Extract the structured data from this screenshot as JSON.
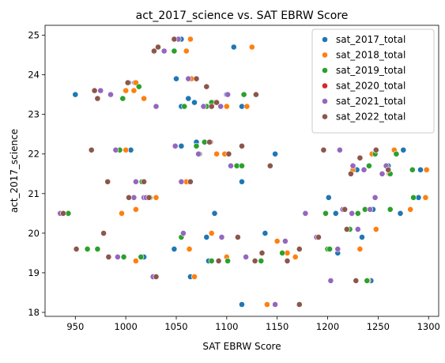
{
  "chart_data": {
    "type": "scatter",
    "title": "act_2017_science vs. SAT EBRW Score",
    "xlabel": "SAT EBRW Score",
    "ylabel": "act_2017_science",
    "xlim": [
      920,
      1310
    ],
    "ylim": [
      17.9,
      25.25
    ],
    "xticks": [
      950,
      1000,
      1050,
      1100,
      1150,
      1200,
      1250,
      1300
    ],
    "yticks": [
      18,
      19,
      20,
      21,
      22,
      23,
      24,
      25
    ],
    "grid": false,
    "legend_position": "top-right",
    "series": [
      {
        "name": "sat_2017_total",
        "color": "#1f77b4",
        "points": [
          [
            950,
            23.5
          ],
          [
            1003,
            23.8
          ],
          [
            1009,
            23.8
          ],
          [
            1050,
            23.9
          ],
          [
            1062,
            23.4
          ],
          [
            1068,
            23.3
          ],
          [
            1100,
            23.5
          ],
          [
            1115,
            23.2
          ],
          [
            1055,
            23.2
          ],
          [
            1080,
            23.2
          ],
          [
            1107,
            24.7
          ],
          [
            1055,
            24.9
          ],
          [
            1055,
            22.2
          ],
          [
            1070,
            22.3
          ],
          [
            1115,
            21.3
          ],
          [
            1005,
            22.1
          ],
          [
            1148,
            22.0
          ],
          [
            1088,
            20.5
          ],
          [
            1064,
            18.9
          ],
          [
            1080,
            19.9
          ],
          [
            1082,
            19.3
          ],
          [
            1048,
            19.6
          ],
          [
            1018,
            19.4
          ],
          [
            1115,
            18.2
          ],
          [
            1138,
            20.0
          ],
          [
            1201,
            20.9
          ],
          [
            1201,
            19.6
          ],
          [
            1210,
            19.5
          ],
          [
            1234,
            19.9
          ],
          [
            1243,
            18.8
          ],
          [
            1260,
            21.7
          ],
          [
            1275,
            22.1
          ],
          [
            1292,
            21.6
          ],
          [
            1290,
            20.9
          ],
          [
            1272,
            20.5
          ],
          [
            1245,
            20.6
          ],
          [
            1208,
            20.5
          ],
          [
            1229,
            21.6
          ]
        ]
      },
      {
        "name": "sat_2018_total",
        "color": "#ff7f0e",
        "points": [
          [
            937,
            20.5
          ],
          [
            996,
            20.5
          ],
          [
            1010,
            20.6
          ],
          [
            1030,
            20.9
          ],
          [
            1008,
            23.6
          ],
          [
            1010,
            23.8
          ],
          [
            1000,
            23.6
          ],
          [
            1018,
            23.4
          ],
          [
            1064,
            24.9
          ],
          [
            1060,
            24.6
          ],
          [
            1125,
            24.7
          ],
          [
            1065,
            23.9
          ],
          [
            1120,
            23.2
          ],
          [
            1088,
            23.3
          ],
          [
            1100,
            23.2
          ],
          [
            1000,
            22.1
          ],
          [
            1063,
            21.3
          ],
          [
            1060,
            21.3
          ],
          [
            1090,
            22.0
          ],
          [
            1110,
            21.7
          ],
          [
            1098,
            22.0
          ],
          [
            1063,
            19.6
          ],
          [
            1085,
            20.0
          ],
          [
            1100,
            19.4
          ],
          [
            1010,
            19.3
          ],
          [
            1140,
            18.2
          ],
          [
            1068,
            18.9
          ],
          [
            1150,
            19.8
          ],
          [
            1160,
            19.5
          ],
          [
            1168,
            19.4
          ],
          [
            1232,
            19.6
          ],
          [
            1240,
            18.8
          ],
          [
            1248,
            20.1
          ],
          [
            1262,
            20.6
          ],
          [
            1282,
            20.6
          ],
          [
            1297,
            20.9
          ],
          [
            1298,
            21.6
          ],
          [
            1266,
            22.1
          ],
          [
            1261,
            21.5
          ],
          [
            1244,
            22.0
          ],
          [
            1225,
            21.6
          ]
        ]
      },
      {
        "name": "sat_2019_total",
        "color": "#2ca02c",
        "points": [
          [
            943,
            20.5
          ],
          [
            962,
            19.6
          ],
          [
            972,
            19.6
          ],
          [
            998,
            19.4
          ],
          [
            1015,
            19.4
          ],
          [
            1024,
            20.9
          ],
          [
            1016,
            21.3
          ],
          [
            994,
            22.1
          ],
          [
            997,
            23.4
          ],
          [
            1013,
            23.7
          ],
          [
            1048,
            24.6
          ],
          [
            1058,
            23.2
          ],
          [
            1070,
            22.2
          ],
          [
            1078,
            22.3
          ],
          [
            1073,
            22.0
          ],
          [
            1080,
            23.2
          ],
          [
            1085,
            23.3
          ],
          [
            1110,
            21.7
          ],
          [
            1115,
            21.7
          ],
          [
            1117,
            23.5
          ],
          [
            1101,
            19.3
          ],
          [
            1085,
            19.3
          ],
          [
            1055,
            19.9
          ],
          [
            1134,
            19.3
          ],
          [
            1155,
            19.5
          ],
          [
            1198,
            20.5
          ],
          [
            1200,
            19.6
          ],
          [
            1202,
            19.6
          ],
          [
            1222,
            20.1
          ],
          [
            1230,
            20.5
          ],
          [
            1237,
            20.6
          ],
          [
            1239,
            18.8
          ],
          [
            1262,
            20.6
          ],
          [
            1268,
            22.0
          ],
          [
            1285,
            20.9
          ],
          [
            1284,
            21.6
          ],
          [
            1262,
            21.5
          ],
          [
            1247,
            22.0
          ],
          [
            1241,
            21.7
          ]
        ]
      },
      {
        "name": "sat_2020_total",
        "color": "#d62728",
        "points": []
      },
      {
        "name": "sat_2021_total",
        "color": "#9467bd",
        "points": [
          [
            935,
            20.5
          ],
          [
            975,
            23.6
          ],
          [
            985,
            23.5
          ],
          [
            990,
            22.1
          ],
          [
            992,
            19.4
          ],
          [
            1003,
            23.8
          ],
          [
            1008,
            20.9
          ],
          [
            1010,
            21.3
          ],
          [
            1018,
            20.9
          ],
          [
            1020,
            20.9
          ],
          [
            1027,
            18.9
          ],
          [
            1030,
            23.2
          ],
          [
            1038,
            24.6
          ],
          [
            1049,
            22.2
          ],
          [
            1052,
            24.9
          ],
          [
            1055,
            21.3
          ],
          [
            1057,
            20.0
          ],
          [
            1062,
            23.9
          ],
          [
            1072,
            22.0
          ],
          [
            1077,
            23.2
          ],
          [
            1084,
            22.3
          ],
          [
            1094,
            23.2
          ],
          [
            1095,
            19.9
          ],
          [
            1101,
            23.5
          ],
          [
            1104,
            21.7
          ],
          [
            1119,
            19.4
          ],
          [
            1148,
            18.2
          ],
          [
            1158,
            19.8
          ],
          [
            1178,
            20.5
          ],
          [
            1189,
            19.9
          ],
          [
            1203,
            18.8
          ],
          [
            1210,
            19.6
          ],
          [
            1215,
            20.6
          ],
          [
            1224,
            20.5
          ],
          [
            1225,
            21.7
          ],
          [
            1230,
            20.1
          ],
          [
            1236,
            21.6
          ],
          [
            1242,
            20.6
          ],
          [
            1247,
            20.9
          ],
          [
            1254,
            21.5
          ],
          [
            1258,
            21.7
          ],
          [
            1212,
            22.1
          ]
        ]
      },
      {
        "name": "sat_2022_total",
        "color": "#8c564b",
        "points": [
          [
            938,
            20.5
          ],
          [
            951,
            19.6
          ],
          [
            966,
            22.1
          ],
          [
            969,
            23.6
          ],
          [
            972,
            23.4
          ],
          [
            978,
            20.0
          ],
          [
            982,
            21.3
          ],
          [
            983,
            19.4
          ],
          [
            1002,
            23.8
          ],
          [
            1003,
            20.9
          ],
          [
            1018,
            21.3
          ],
          [
            1023,
            20.9
          ],
          [
            1028,
            24.6
          ],
          [
            1032,
            24.7
          ],
          [
            1030,
            18.9
          ],
          [
            1048,
            24.9
          ],
          [
            1064,
            21.3
          ],
          [
            1070,
            23.9
          ],
          [
            1080,
            23.7
          ],
          [
            1083,
            22.3
          ],
          [
            1085,
            23.2
          ],
          [
            1090,
            23.3
          ],
          [
            1092,
            19.3
          ],
          [
            1102,
            22.0
          ],
          [
            1111,
            19.9
          ],
          [
            1115,
            22.2
          ],
          [
            1128,
            19.3
          ],
          [
            1129,
            23.5
          ],
          [
            1135,
            19.5
          ],
          [
            1143,
            21.7
          ],
          [
            1160,
            19.3
          ],
          [
            1172,
            18.2
          ],
          [
            1172,
            19.6
          ],
          [
            1191,
            19.9
          ],
          [
            1196,
            22.1
          ],
          [
            1217,
            20.6
          ],
          [
            1219,
            20.1
          ],
          [
            1223,
            21.5
          ],
          [
            1228,
            18.8
          ],
          [
            1232,
            21.9
          ],
          [
            1260,
            21.6
          ],
          [
            1248,
            22.1
          ]
        ]
      }
    ]
  }
}
